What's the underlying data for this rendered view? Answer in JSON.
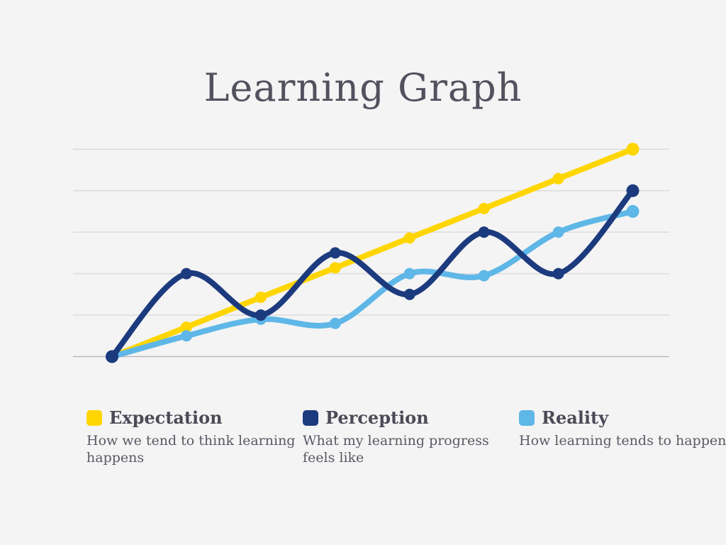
{
  "title": "Learning Graph",
  "colors": {
    "background": "#f4f4f4",
    "title_text": "#52515e",
    "legend_label_text": "#4b4a57",
    "legend_desc_text": "#5a5965",
    "gridline": "#dcdcdc",
    "baseline": "#b9b9ba",
    "expectation": "#FFD602",
    "perception": "#1C3A7E",
    "reality": "#5EB7E7"
  },
  "chart_data": {
    "type": "line",
    "title": "Learning Graph",
    "xlabel": "",
    "ylabel": "",
    "x": [
      0,
      1,
      2,
      3,
      4,
      5,
      6,
      7
    ],
    "x_tick_labels": [],
    "y_tick_labels": [],
    "ylim": [
      0,
      5
    ],
    "gridlines_y": [
      0,
      1,
      2,
      3,
      4,
      5
    ],
    "grid": "horizontal",
    "smooth": true,
    "markers": true,
    "legend_position": "bottom",
    "series": [
      {
        "name": "Expectation",
        "color_key": "expectation",
        "values": [
          0,
          0.71,
          1.43,
          2.14,
          2.86,
          3.57,
          4.29,
          5.0
        ]
      },
      {
        "name": "Reality",
        "color_key": "reality",
        "values": [
          0,
          0.5,
          0.9,
          0.8,
          2.0,
          1.95,
          3.0,
          3.5
        ]
      },
      {
        "name": "Perception",
        "color_key": "perception",
        "values": [
          0,
          2.0,
          1.0,
          2.5,
          1.5,
          3.0,
          2.0,
          4.0
        ]
      }
    ]
  },
  "legend": [
    {
      "label": "Expectation",
      "description": "How we tend to think learning\nhappens",
      "swatch_color": "#FFD602"
    },
    {
      "label": "Perception",
      "description": "What my learning progress\nfeels like",
      "swatch_color": "#1C3A7E"
    },
    {
      "label": "Reality",
      "description": "How learning tends to happen",
      "swatch_color": "#5EB7E7"
    }
  ]
}
